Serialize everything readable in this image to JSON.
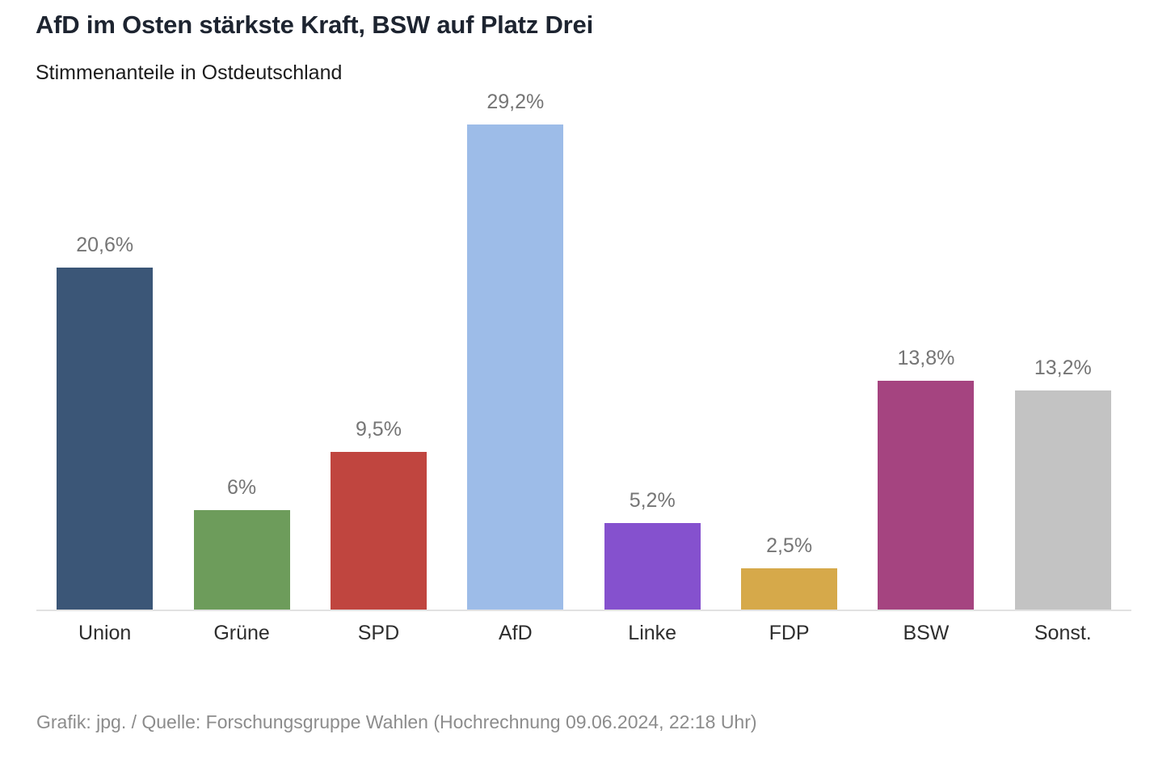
{
  "header": {
    "title": "AfD im Osten stärkste Kraft, BSW auf Platz Drei",
    "subtitle": "Stimmenanteile in Ostdeutschland"
  },
  "chart_data": {
    "type": "bar",
    "title": "AfD im Osten stärkste Kraft, BSW auf Platz Drei",
    "subtitle": "Stimmenanteile in Ostdeutschland",
    "categories": [
      "Union",
      "Grüne",
      "SPD",
      "AfD",
      "Linke",
      "FDP",
      "BSW",
      "Sonst."
    ],
    "values": [
      20.6,
      6,
      9.5,
      29.2,
      5.2,
      2.5,
      13.8,
      13.2
    ],
    "value_labels": [
      "20,6%",
      "6%",
      "9,5%",
      "29,2%",
      "5,2%",
      "2,5%",
      "13,8%",
      "13,2%"
    ],
    "bar_colors": [
      "#3b5677",
      "#6d9c5b",
      "#c0453f",
      "#9dbce8",
      "#8551ce",
      "#d6a94a",
      "#a54480",
      "#c3c3c3"
    ],
    "xlabel": "",
    "ylabel": "",
    "ylim": [
      0,
      31.7
    ],
    "grid": false,
    "legend": false,
    "value_label_position": "above-bar",
    "axis_line_color": "#e2e2e2",
    "value_label_color": "#757575",
    "category_label_color": "#2e2e2e"
  },
  "footer": {
    "credit": "Grafik: jpg. / Quelle: Forschungsgruppe Wahlen (Hochrechnung 09.06.2024, 22:18 Uhr)"
  }
}
